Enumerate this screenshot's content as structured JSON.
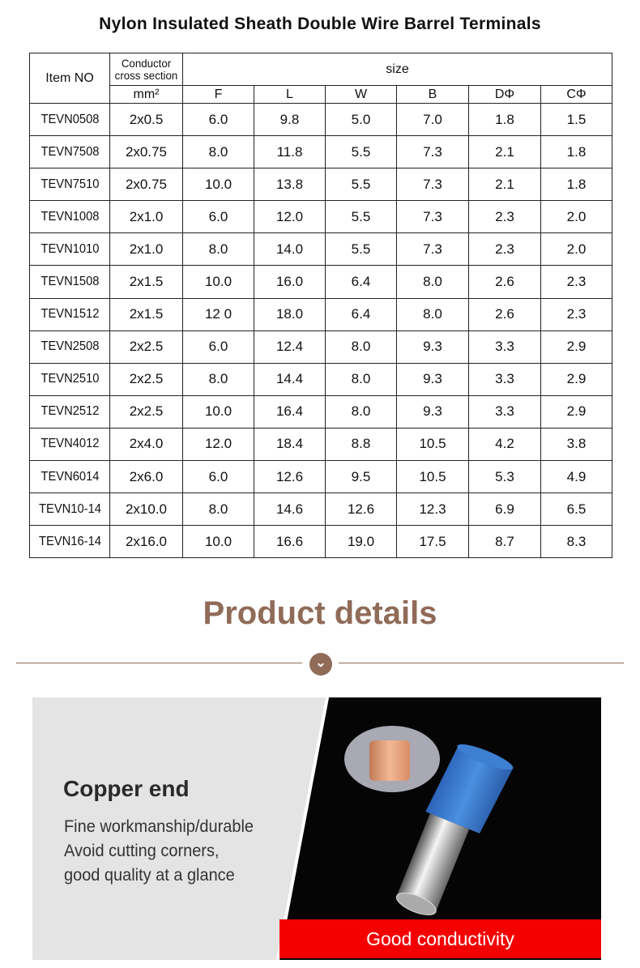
{
  "title": "Nylon Insulated Sheath Double Wire Barrel Terminals",
  "table": {
    "item_header": "Item NO",
    "conductor_header_line1": "Conductor",
    "conductor_header_line2": "cross section",
    "conductor_unit": "mm²",
    "size_header": "size",
    "size_columns": [
      "F",
      "L",
      "W",
      "B",
      "DΦ",
      "CΦ"
    ],
    "rows": [
      [
        "TEVN0508",
        "2x0.5",
        "6.0",
        "9.8",
        "5.0",
        "7.0",
        "1.8",
        "1.5"
      ],
      [
        "TEVN7508",
        "2x0.75",
        "8.0",
        "11.8",
        "5.5",
        "7.3",
        "2.1",
        "1.8"
      ],
      [
        "TEVN7510",
        "2x0.75",
        "10.0",
        "13.8",
        "5.5",
        "7.3",
        "2.1",
        "1.8"
      ],
      [
        "TEVN1008",
        "2x1.0",
        "6.0",
        "12.0",
        "5.5",
        "7.3",
        "2.3",
        "2.0"
      ],
      [
        "TEVN1010",
        "2x1.0",
        "8.0",
        "14.0",
        "5.5",
        "7.3",
        "2.3",
        "2.0"
      ],
      [
        "TEVN1508",
        "2x1.5",
        "10.0",
        "16.0",
        "6.4",
        "8.0",
        "2.6",
        "2.3"
      ],
      [
        "TEVN1512",
        "2x1.5",
        "12 0",
        "18.0",
        "6.4",
        "8.0",
        "2.6",
        "2.3"
      ],
      [
        "TEVN2508",
        "2x2.5",
        "6.0",
        "12.4",
        "8.0",
        "9.3",
        "3.3",
        "2.9"
      ],
      [
        "TEVN2510",
        "2x2.5",
        "8.0",
        "14.4",
        "8.0",
        "9.3",
        "3.3",
        "2.9"
      ],
      [
        "TEVN2512",
        "2x2.5",
        "10.0",
        "16.4",
        "8.0",
        "9.3",
        "3.3",
        "2.9"
      ],
      [
        "TEVN4012",
        "2x4.0",
        "12.0",
        "18.4",
        "8.8",
        "10.5",
        "4.2",
        "3.8"
      ],
      [
        "TEVN6014",
        "2x6.0",
        "6.0",
        "12.6",
        "9.5",
        "10.5",
        "5.3",
        "4.9"
      ],
      [
        "TEVN10-14",
        "2x10.0",
        "8.0",
        "14.6",
        "12.6",
        "12.3",
        "6.9",
        "6.5"
      ],
      [
        "TEVN16-14",
        "2x16.0",
        "10.0",
        "16.6",
        "19.0",
        "17.5",
        "8.7",
        "8.3"
      ]
    ]
  },
  "section_title": "Product details",
  "divider_icon": "chevron-down-icon",
  "accent_color": "#8f6b58",
  "feature": {
    "heading": "Copper end",
    "lines": [
      "Fine workmanship/durable",
      "Avoid cutting corners,",
      "good quality at a glance"
    ],
    "banner": "Good conductivity",
    "banner_color": "#f50000"
  }
}
